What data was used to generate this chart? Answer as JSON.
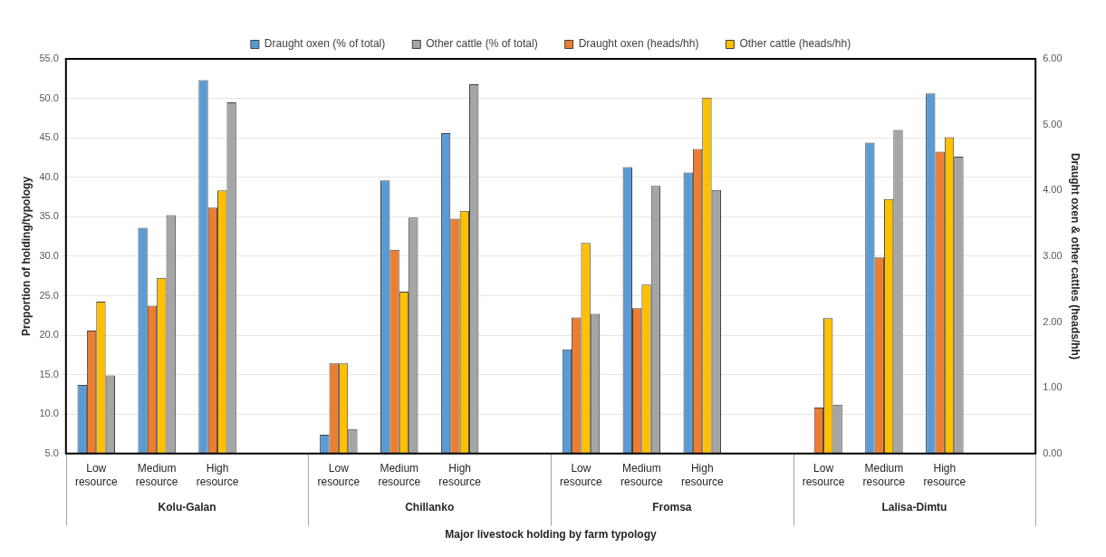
{
  "chart_data": {
    "type": "bar",
    "xlabel": "Major livestock holding by farm typology",
    "ylabel": "Proportion of holding/typology",
    "y2label": "Draught oxen & other cattles (heads/hh)",
    "categories": [
      "Low resource",
      "Medium resource",
      "High resource",
      null,
      "Low resource",
      "Medium resource",
      "High resource",
      null,
      "Low resource",
      "Medium resource",
      "High resource",
      null,
      "Low resource",
      "Medium resource",
      "High resource",
      null
    ],
    "annotations": [
      "Kolu-Galan",
      "Chillanko",
      "Fromsa",
      "Lalisa-Dimtu"
    ],
    "series": [
      {
        "name": "Draught oxen (% of total)",
        "color": "#5b9bd5",
        "values": [
          13.7,
          33.6,
          52.3,
          null,
          7.4,
          39.6,
          45.6,
          null,
          18.2,
          41.3,
          40.6,
          null,
          null,
          44.4,
          50.6,
          null
        ]
      },
      {
        "name": "Draught oxen (heads/hh)",
        "color": "#ed7d31",
        "axis": "y2",
        "values": [
          1.87,
          2.25,
          3.74,
          null,
          1.37,
          3.1,
          3.57,
          null,
          2.07,
          2.21,
          4.63,
          null,
          0.7,
          2.98,
          4.59,
          null
        ]
      },
      {
        "name": "Other cattle (heads/hh)",
        "color": "#ffc000",
        "axis": "y2",
        "values": [
          2.31,
          2.67,
          4.0,
          null,
          1.37,
          2.46,
          3.69,
          null,
          3.2,
          2.57,
          5.41,
          null,
          2.06,
          3.87,
          4.81,
          null
        ]
      },
      {
        "name": "Other cattle (% of total)",
        "color": "#a5a5a5",
        "values": [
          14.9,
          35.2,
          49.5,
          null,
          8.1,
          34.9,
          51.8,
          null,
          22.7,
          38.9,
          38.4,
          null,
          11.2,
          46.0,
          42.6,
          null
        ]
      }
    ],
    "ylim": [
      5,
      55
    ],
    "yticks": [
      {
        "value": 5,
        "label": "5.0"
      },
      {
        "value": 10,
        "label": "10.0"
      },
      {
        "value": 15,
        "label": "15.0"
      },
      {
        "value": 20,
        "label": "20.0"
      },
      {
        "value": 25,
        "label": "25.0"
      },
      {
        "value": 30,
        "label": "30.0"
      },
      {
        "value": 35,
        "label": "35.0"
      },
      {
        "value": 40,
        "label": "40.0"
      },
      {
        "value": 45,
        "label": "45.0"
      },
      {
        "value": 50,
        "label": "50.0"
      },
      {
        "value": 55,
        "label": "55.0"
      }
    ],
    "y2lim": [
      0,
      6
    ],
    "y2ticks": [
      {
        "value": 0,
        "label": "0.00"
      },
      {
        "value": 1,
        "label": "1.00"
      },
      {
        "value": 2,
        "label": "2.00"
      },
      {
        "value": 3,
        "label": "3.00"
      },
      {
        "value": 4,
        "label": "4.00"
      },
      {
        "value": 5,
        "label": "5.00"
      },
      {
        "value": 6,
        "label": "6.00"
      }
    ],
    "grid": "y",
    "legend": "top"
  }
}
